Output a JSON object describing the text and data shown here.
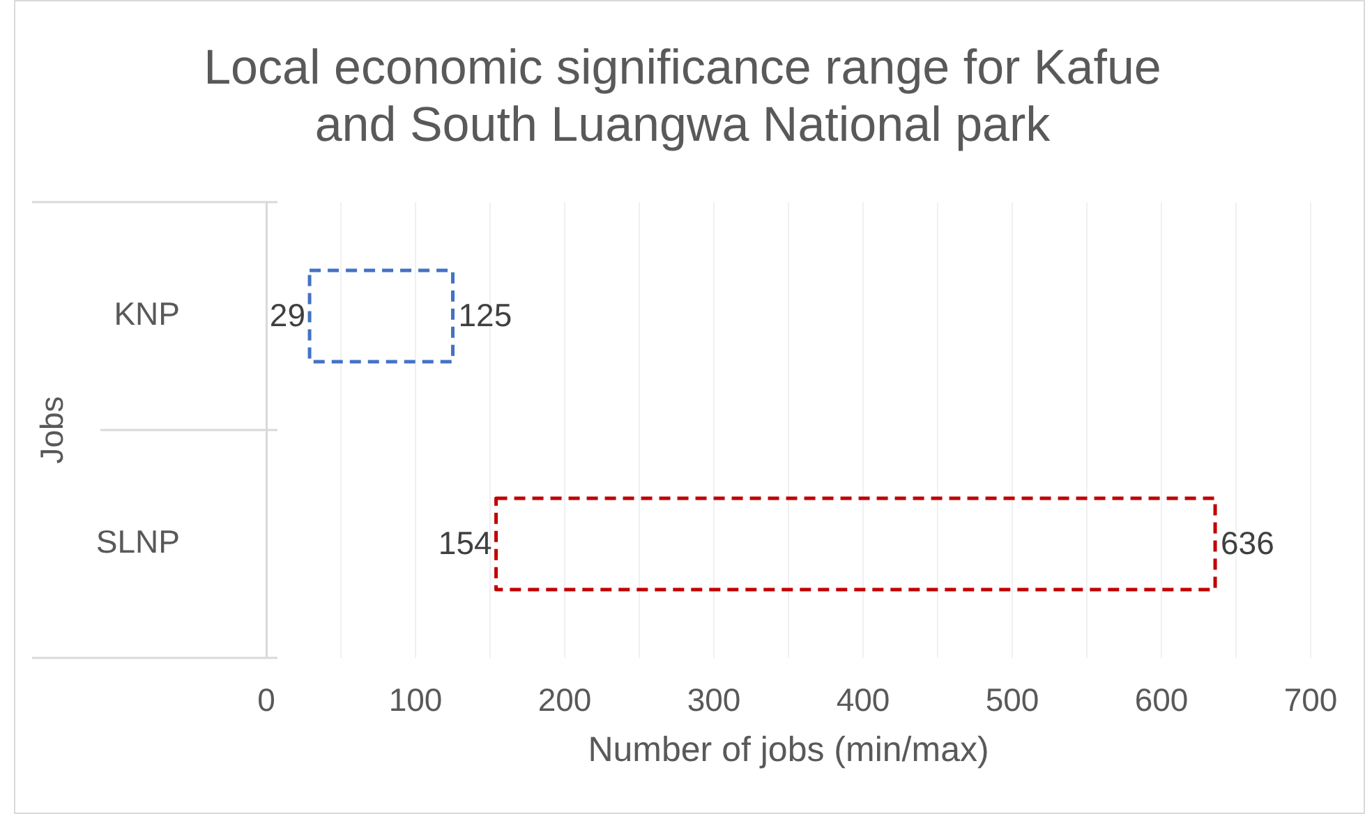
{
  "chart_data": {
    "type": "bar",
    "orientation": "horizontal",
    "title": "Local economic significance range for Kafue and South Luangwa National park",
    "xlabel": "Number of jobs (min/max)",
    "ylabel": "Jobs",
    "categories": [
      "KNP",
      "SLNP"
    ],
    "base": [
      29,
      154
    ],
    "values": [
      96,
      482
    ],
    "colors": [
      "#4472c4",
      "#c00000"
    ],
    "line_style": "dashed",
    "xlim": [
      0,
      700
    ],
    "xticks": [
      0,
      {
        "value": 50,
        "label": null
      },
      100,
      {
        "value": 150,
        "label": null
      },
      200,
      {
        "value": 250,
        "label": null
      },
      300,
      {
        "value": 350,
        "label": null
      },
      400,
      {
        "value": 450,
        "label": null
      },
      500,
      {
        "value": 550,
        "label": null
      },
      600,
      {
        "value": 650,
        "label": null
      },
      700
    ],
    "grid": "x",
    "annotations": [
      {
        "text": "29",
        "x": 29,
        "y": "KNP"
      },
      {
        "text": "125",
        "x": 125,
        "y": "KNP"
      },
      {
        "text": "154",
        "x": 154,
        "y": "SLNP"
      },
      {
        "text": "636",
        "x": 636,
        "y": "SLNP"
      }
    ]
  }
}
